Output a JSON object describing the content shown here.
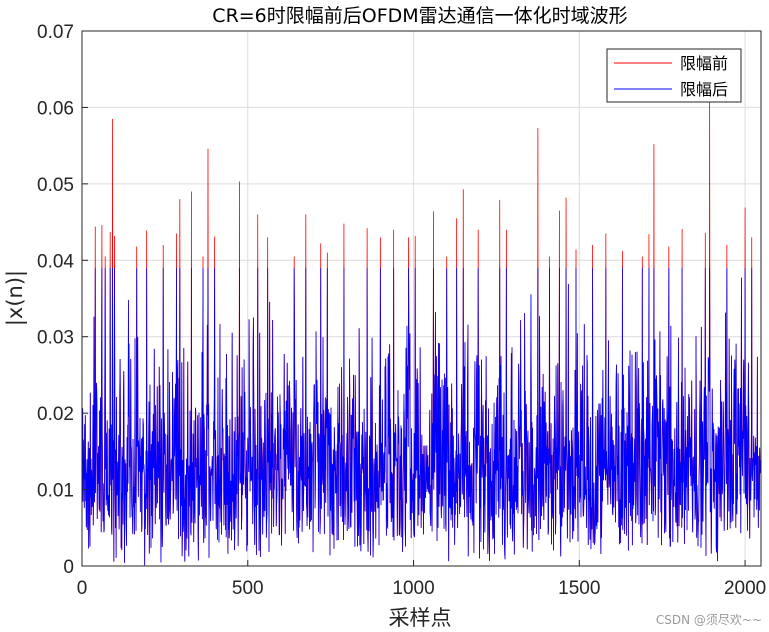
{
  "chart_data": {
    "type": "line",
    "title": "CR=6时限幅前后OFDM雷达通信一体化时域波形",
    "xlabel": "采样点",
    "ylabel": "|x(n)|",
    "xlim": [
      0,
      2048
    ],
    "ylim": [
      0,
      0.07
    ],
    "xticks": [
      0,
      500,
      1000,
      1500,
      2000
    ],
    "yticks": [
      0,
      0.01,
      0.02,
      0.03,
      0.04,
      0.05,
      0.06,
      0.07
    ],
    "ytick_labels": [
      "0",
      "0.01",
      "0.02",
      "0.03",
      "0.04",
      "0.05",
      "0.06",
      "0.07"
    ],
    "grid": true,
    "legend_position": "top-right",
    "clip_level": 0.039,
    "num_samples": 2048,
    "series": [
      {
        "name": "限幅前",
        "color": "#ff0000",
        "peaks": [
          {
            "x": 40,
            "y": 0.0444
          },
          {
            "x": 60,
            "y": 0.0446
          },
          {
            "x": 70,
            "y": 0.0405
          },
          {
            "x": 85,
            "y": 0.0437
          },
          {
            "x": 92,
            "y": 0.0585
          },
          {
            "x": 98,
            "y": 0.0432
          },
          {
            "x": 165,
            "y": 0.0418
          },
          {
            "x": 195,
            "y": 0.0439
          },
          {
            "x": 245,
            "y": 0.042
          },
          {
            "x": 285,
            "y": 0.0435
          },
          {
            "x": 295,
            "y": 0.048
          },
          {
            "x": 330,
            "y": 0.049
          },
          {
            "x": 365,
            "y": 0.0405
          },
          {
            "x": 380,
            "y": 0.0546
          },
          {
            "x": 400,
            "y": 0.0431
          },
          {
            "x": 475,
            "y": 0.0503
          },
          {
            "x": 530,
            "y": 0.046
          },
          {
            "x": 560,
            "y": 0.043
          },
          {
            "x": 640,
            "y": 0.0405
          },
          {
            "x": 675,
            "y": 0.046
          },
          {
            "x": 720,
            "y": 0.0422
          },
          {
            "x": 740,
            "y": 0.041
          },
          {
            "x": 790,
            "y": 0.0448
          },
          {
            "x": 860,
            "y": 0.0442
          },
          {
            "x": 900,
            "y": 0.043
          },
          {
            "x": 940,
            "y": 0.044
          },
          {
            "x": 985,
            "y": 0.043
          },
          {
            "x": 1005,
            "y": 0.0432
          },
          {
            "x": 1060,
            "y": 0.0464
          },
          {
            "x": 1100,
            "y": 0.0405
          },
          {
            "x": 1130,
            "y": 0.0455
          },
          {
            "x": 1150,
            "y": 0.0493
          },
          {
            "x": 1195,
            "y": 0.044
          },
          {
            "x": 1260,
            "y": 0.0479
          },
          {
            "x": 1280,
            "y": 0.044
          },
          {
            "x": 1375,
            "y": 0.0573
          },
          {
            "x": 1410,
            "y": 0.0405
          },
          {
            "x": 1440,
            "y": 0.0465
          },
          {
            "x": 1460,
            "y": 0.0482
          },
          {
            "x": 1490,
            "y": 0.0414
          },
          {
            "x": 1540,
            "y": 0.042
          },
          {
            "x": 1580,
            "y": 0.0435
          },
          {
            "x": 1630,
            "y": 0.0412
          },
          {
            "x": 1690,
            "y": 0.0405
          },
          {
            "x": 1710,
            "y": 0.0434
          },
          {
            "x": 1725,
            "y": 0.0552
          },
          {
            "x": 1770,
            "y": 0.0418
          },
          {
            "x": 1810,
            "y": 0.0441
          },
          {
            "x": 1880,
            "y": 0.0436
          },
          {
            "x": 1893,
            "y": 0.061
          },
          {
            "x": 1945,
            "y": 0.042
          },
          {
            "x": 2000,
            "y": 0.0469
          },
          {
            "x": 2020,
            "y": 0.043
          }
        ]
      },
      {
        "name": "限幅后",
        "color": "#0000ff",
        "max": 0.039
      }
    ]
  },
  "watermark": "CSDN @须尽欢~~"
}
